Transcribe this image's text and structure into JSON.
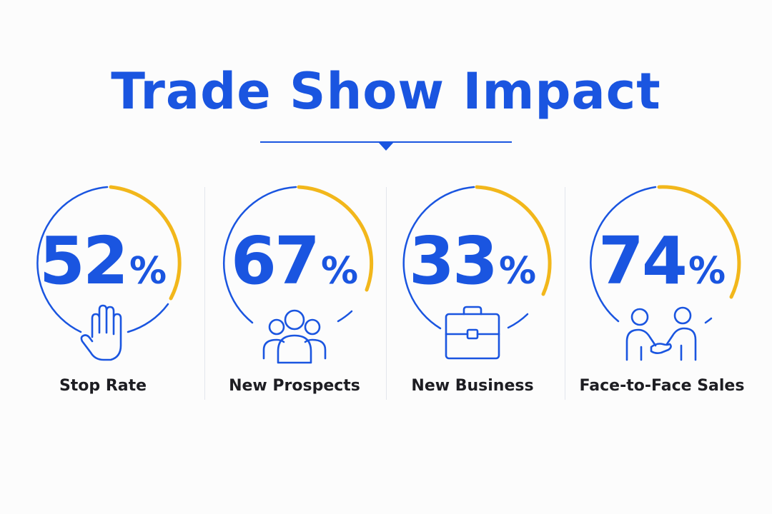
{
  "title": "Trade Show Impact",
  "colors": {
    "primary": "#1a55e0",
    "accent": "#f2b71b",
    "text": "#1d1d22",
    "divider": "#e3e6ec"
  },
  "stats": [
    {
      "value": "52",
      "unit": "%",
      "label": "Stop Rate",
      "icon": "raised-hand-icon"
    },
    {
      "value": "67",
      "unit": "%",
      "label": "New Prospects",
      "icon": "group-of-people-icon"
    },
    {
      "value": "33",
      "unit": "%",
      "label": "New Business",
      "icon": "briefcase-icon"
    },
    {
      "value": "74",
      "unit": "%",
      "label": "Face-to-Face Sales",
      "icon": "handshake-icon"
    }
  ]
}
